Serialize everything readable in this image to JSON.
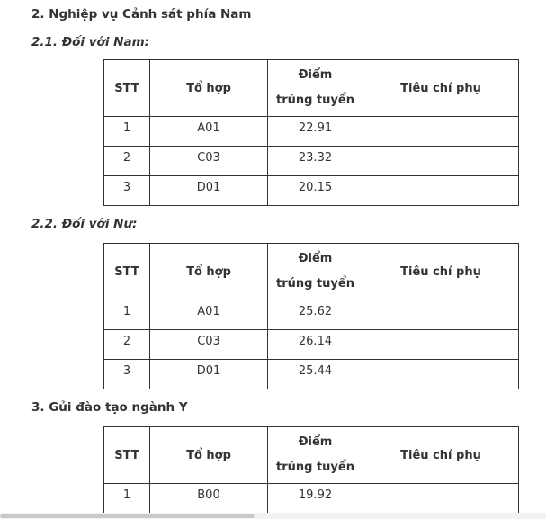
{
  "headings": {
    "section2": "2. Nghiệp vụ Cảnh sát phía Nam",
    "section21": "2.1. Đối với Nam:",
    "section22": "2.2. Đối với Nữ:",
    "section3": "3. Gửi đào tạo ngành Y"
  },
  "table_headers": {
    "stt": "STT",
    "to_hop": "Tổ hợp",
    "diem_line1": "Điểm",
    "diem_line2": "trúng tuyển",
    "tieu_chi_phu": "Tiêu chí phụ"
  },
  "tables": {
    "nam": {
      "rows": [
        [
          "1",
          "A01",
          "22.91",
          ""
        ],
        [
          "2",
          "C03",
          "23.32",
          ""
        ],
        [
          "3",
          "D01",
          "20.15",
          ""
        ]
      ]
    },
    "nu": {
      "rows": [
        [
          "1",
          "A01",
          "25.62",
          ""
        ],
        [
          "2",
          "C03",
          "26.14",
          ""
        ],
        [
          "3",
          "D01",
          "25.44",
          ""
        ]
      ]
    },
    "y": {
      "rows": [
        [
          "1",
          "B00",
          "19.92",
          ""
        ]
      ]
    }
  },
  "colors": {
    "text": "#333333",
    "border": "#333333",
    "scrollbar_thumb": "#c7cacd",
    "scrollbar_track": "#f2f2f2"
  }
}
